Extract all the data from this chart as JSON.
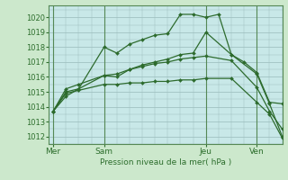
{
  "bg_color": "#cce8cc",
  "plot_bg_color": "#c8e8e8",
  "grid_color": "#99bbbb",
  "line_color": "#2d6b2d",
  "marker_color": "#2d6b2d",
  "xlabel": "Pression niveau de la mer( hPa )",
  "ylim": [
    1011.5,
    1020.8
  ],
  "yticks": [
    1012,
    1013,
    1014,
    1015,
    1016,
    1017,
    1018,
    1019,
    1020
  ],
  "xtick_labels": [
    "Mer",
    "Sam",
    "Jeu",
    "Ven"
  ],
  "xtick_positions": [
    0,
    24,
    72,
    96
  ],
  "xlim": [
    -2,
    108
  ],
  "series": [
    {
      "x": [
        0,
        6,
        12,
        24,
        30,
        36,
        42,
        48,
        54,
        60,
        66,
        72,
        78,
        84,
        90,
        96,
        102,
        108
      ],
      "y": [
        1013.7,
        1014.7,
        1015.2,
        1018.0,
        1017.6,
        1018.2,
        1018.5,
        1018.8,
        1018.9,
        1020.2,
        1020.2,
        1020.0,
        1020.2,
        1017.5,
        1017.0,
        1016.3,
        1014.3,
        1014.2
      ]
    },
    {
      "x": [
        0,
        6,
        12,
        24,
        30,
        36,
        42,
        48,
        54,
        60,
        66,
        72,
        84,
        96,
        102,
        108
      ],
      "y": [
        1013.7,
        1015.0,
        1015.2,
        1016.1,
        1016.0,
        1016.5,
        1016.8,
        1017.0,
        1017.2,
        1017.5,
        1017.6,
        1019.0,
        1017.5,
        1016.2,
        1014.2,
        1012.0
      ]
    },
    {
      "x": [
        0,
        6,
        12,
        24,
        30,
        36,
        42,
        48,
        54,
        60,
        66,
        72,
        84,
        96,
        102,
        108
      ],
      "y": [
        1013.7,
        1015.2,
        1015.5,
        1016.1,
        1016.2,
        1016.5,
        1016.7,
        1016.9,
        1017.0,
        1017.2,
        1017.3,
        1017.4,
        1017.1,
        1015.3,
        1013.7,
        1012.5
      ]
    },
    {
      "x": [
        0,
        6,
        12,
        24,
        30,
        36,
        42,
        48,
        54,
        60,
        66,
        72,
        84,
        96,
        102,
        108
      ],
      "y": [
        1013.7,
        1014.9,
        1015.1,
        1015.5,
        1015.5,
        1015.6,
        1015.6,
        1015.7,
        1015.7,
        1015.8,
        1015.8,
        1015.9,
        1015.9,
        1014.3,
        1013.5,
        1011.9
      ]
    }
  ],
  "vlines": [
    0,
    24,
    72,
    96
  ]
}
